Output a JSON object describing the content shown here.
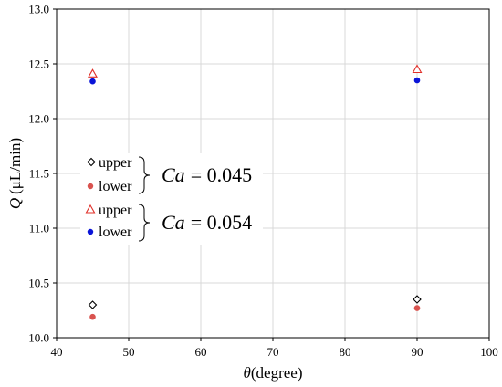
{
  "chart_data": {
    "type": "scatter",
    "xlabel_symbol": "θ",
    "xlabel_unit": "(degree)",
    "ylabel_symbol": "Q",
    "ylabel_unit": "(μL/min)",
    "xlim": [
      40,
      100
    ],
    "ylim": [
      10.0,
      13.0
    ],
    "x_ticks": [
      "40",
      "50",
      "60",
      "70",
      "80",
      "90",
      "100"
    ],
    "y_ticks": [
      "10.0",
      "10.5",
      "11.0",
      "11.5",
      "12.0",
      "12.5",
      "13.0"
    ],
    "grid": true,
    "series": [
      {
        "name": "upper",
        "group": "Ca = 0.045",
        "marker": "diamond",
        "color": "#000000",
        "fill": "none",
        "points": [
          {
            "x": 45,
            "y": 10.3
          },
          {
            "x": 90,
            "y": 10.35
          }
        ]
      },
      {
        "name": "lower",
        "group": "Ca = 0.045",
        "marker": "circle",
        "color": "#d9534f",
        "fill": "#d9534f",
        "points": [
          {
            "x": 45,
            "y": 10.19
          },
          {
            "x": 90,
            "y": 10.27
          }
        ]
      },
      {
        "name": "upper",
        "group": "Ca = 0.054",
        "marker": "triangle",
        "color": "#e0302a",
        "fill": "none",
        "points": [
          {
            "x": 45,
            "y": 12.41
          },
          {
            "x": 90,
            "y": 12.45
          }
        ]
      },
      {
        "name": "lower",
        "group": "Ca = 0.054",
        "marker": "circle",
        "color": "#0a14d8",
        "fill": "#0a14d8",
        "points": [
          {
            "x": 45,
            "y": 12.34
          },
          {
            "x": 90,
            "y": 12.35
          }
        ]
      }
    ],
    "legend": {
      "placement": "left",
      "groups": [
        {
          "symbol": "Ca",
          "value": "= 0.045",
          "entries": [
            "upper",
            "lower"
          ]
        },
        {
          "symbol": "Ca",
          "value": "= 0.054",
          "entries": [
            "upper",
            "lower"
          ]
        }
      ]
    }
  }
}
